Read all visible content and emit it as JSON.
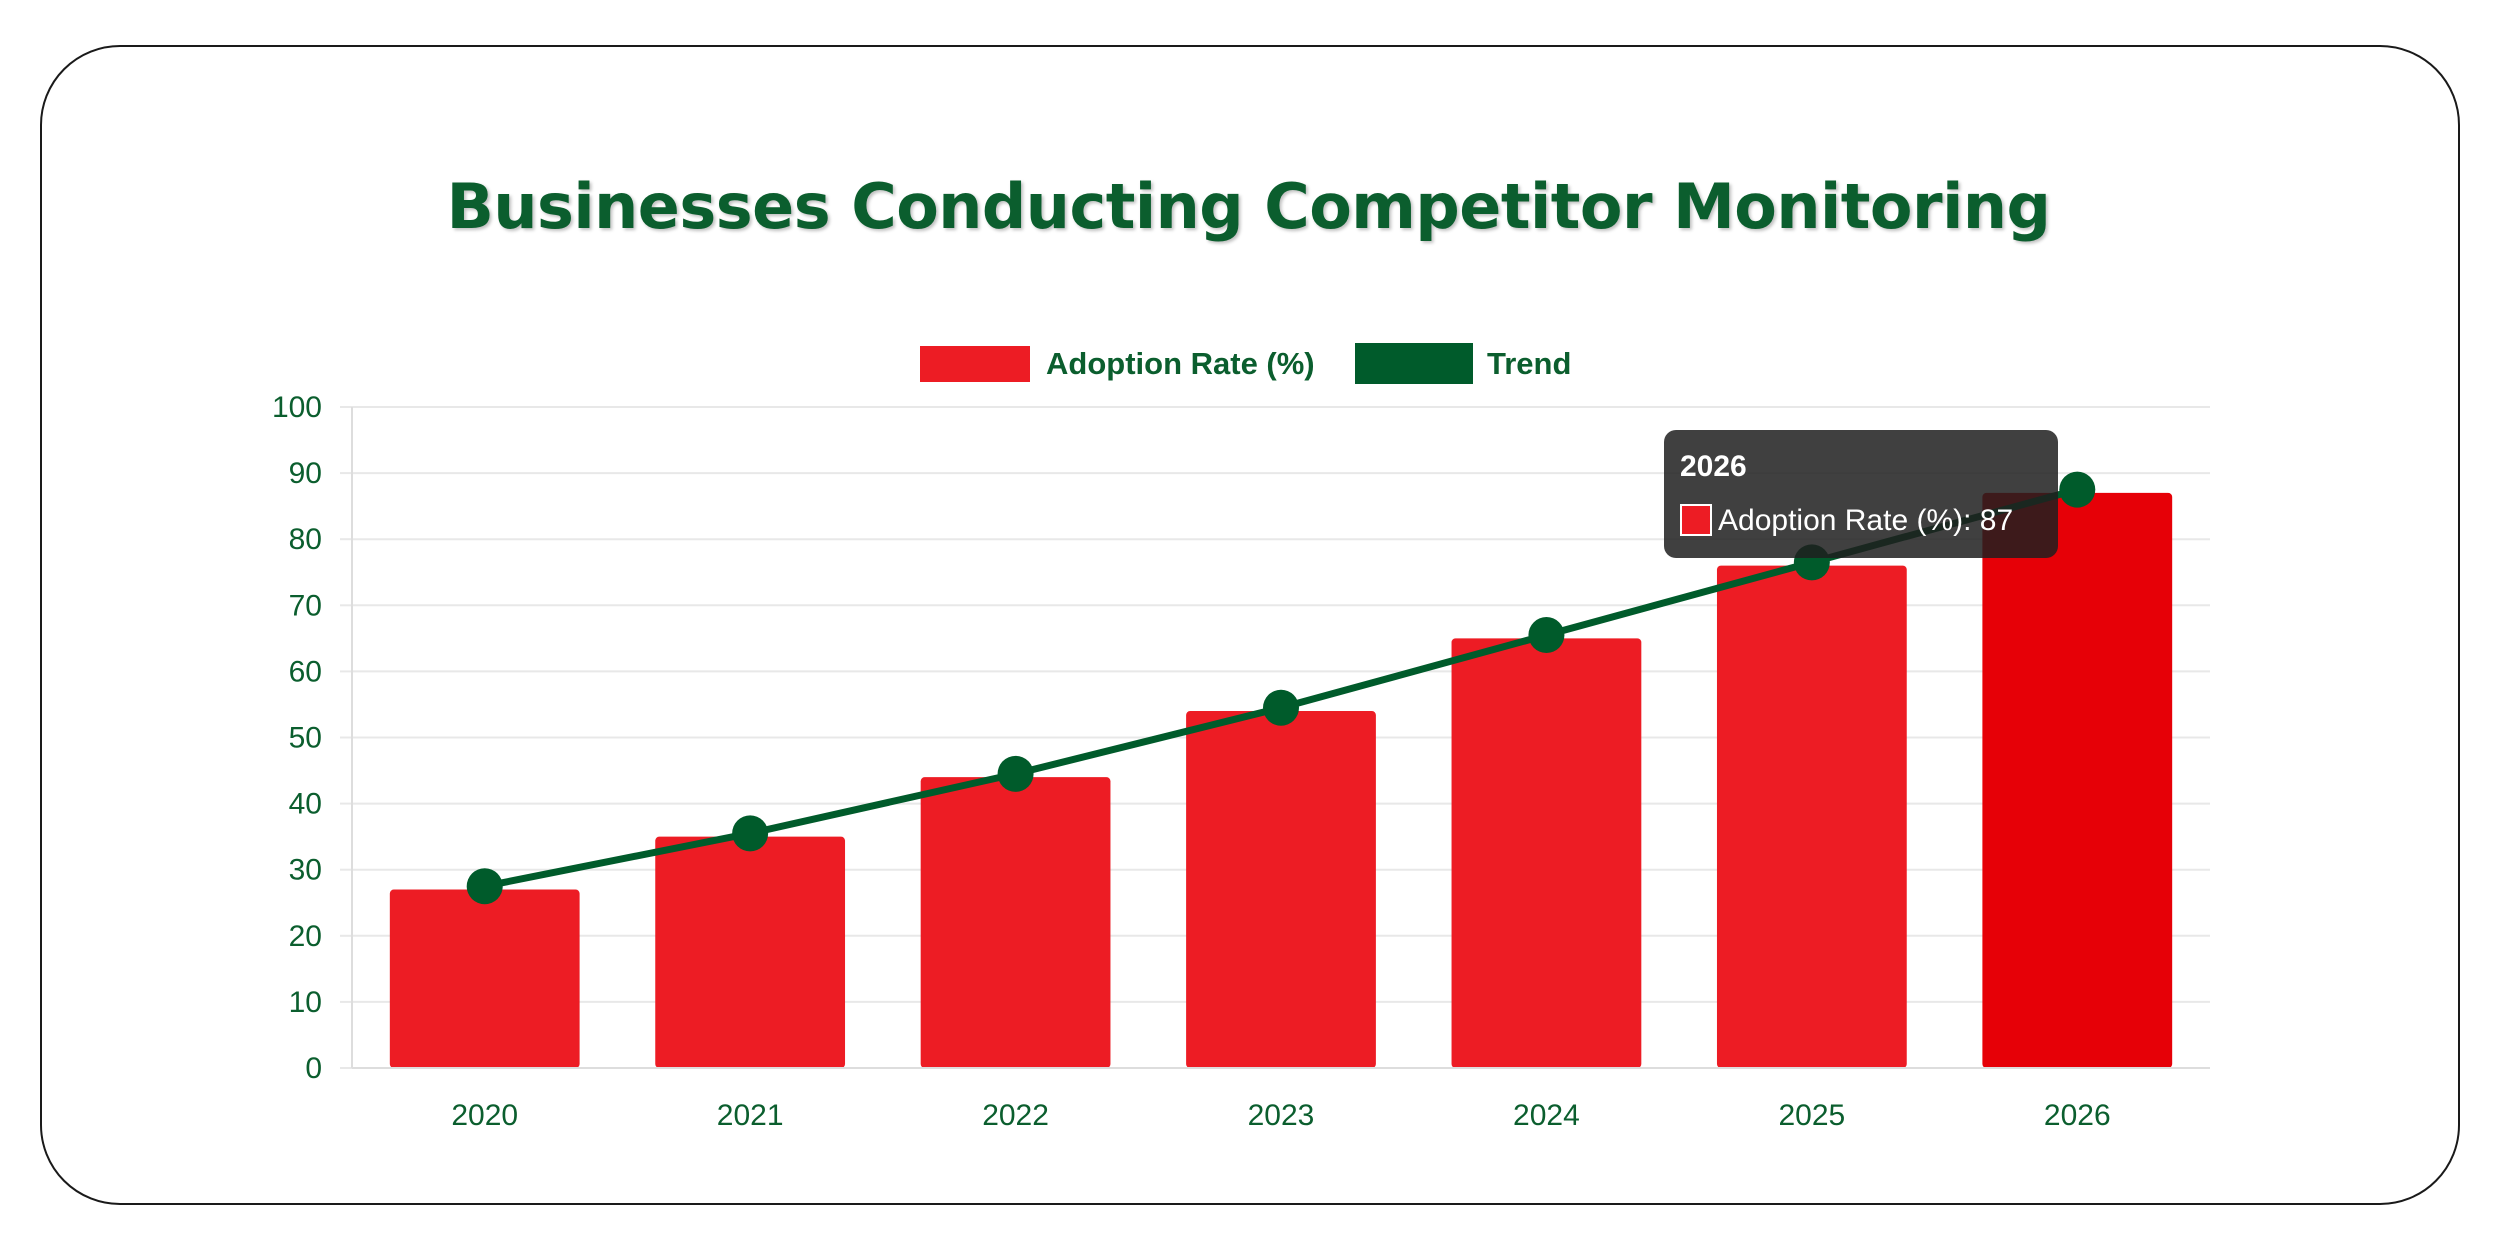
{
  "colors": {
    "title": "#0b5e2e",
    "bar": "#ed1c24",
    "bar_active": "#e60007",
    "trend": "#005b2b",
    "axis_text": "#0b5e2e",
    "grid": "#e8e8e8",
    "tooltip_bg": "#1f1f1f"
  },
  "chart_data": {
    "type": "bar",
    "title": "Businesses Conducting Competitor Monitoring",
    "categories": [
      "2020",
      "2021",
      "2022",
      "2023",
      "2024",
      "2025",
      "2026"
    ],
    "series": [
      {
        "name": "Adoption Rate (%)",
        "type": "bar",
        "values": [
          27,
          35,
          44,
          54,
          65,
          76,
          87
        ]
      },
      {
        "name": "Trend",
        "type": "line",
        "values": [
          27.5,
          35.5,
          44.5,
          54.5,
          65.5,
          76.5,
          87.5
        ]
      }
    ],
    "ylim": [
      0,
      100
    ],
    "yticks": [
      "0",
      "10",
      "20",
      "30",
      "40",
      "50",
      "60",
      "70",
      "80",
      "90",
      "100"
    ],
    "xlabel": "",
    "ylabel": "",
    "grid": true,
    "legend_position": "top",
    "active_index": 6
  },
  "tooltip": {
    "title": "2026",
    "label": "Adoption Rate (%): 87"
  }
}
